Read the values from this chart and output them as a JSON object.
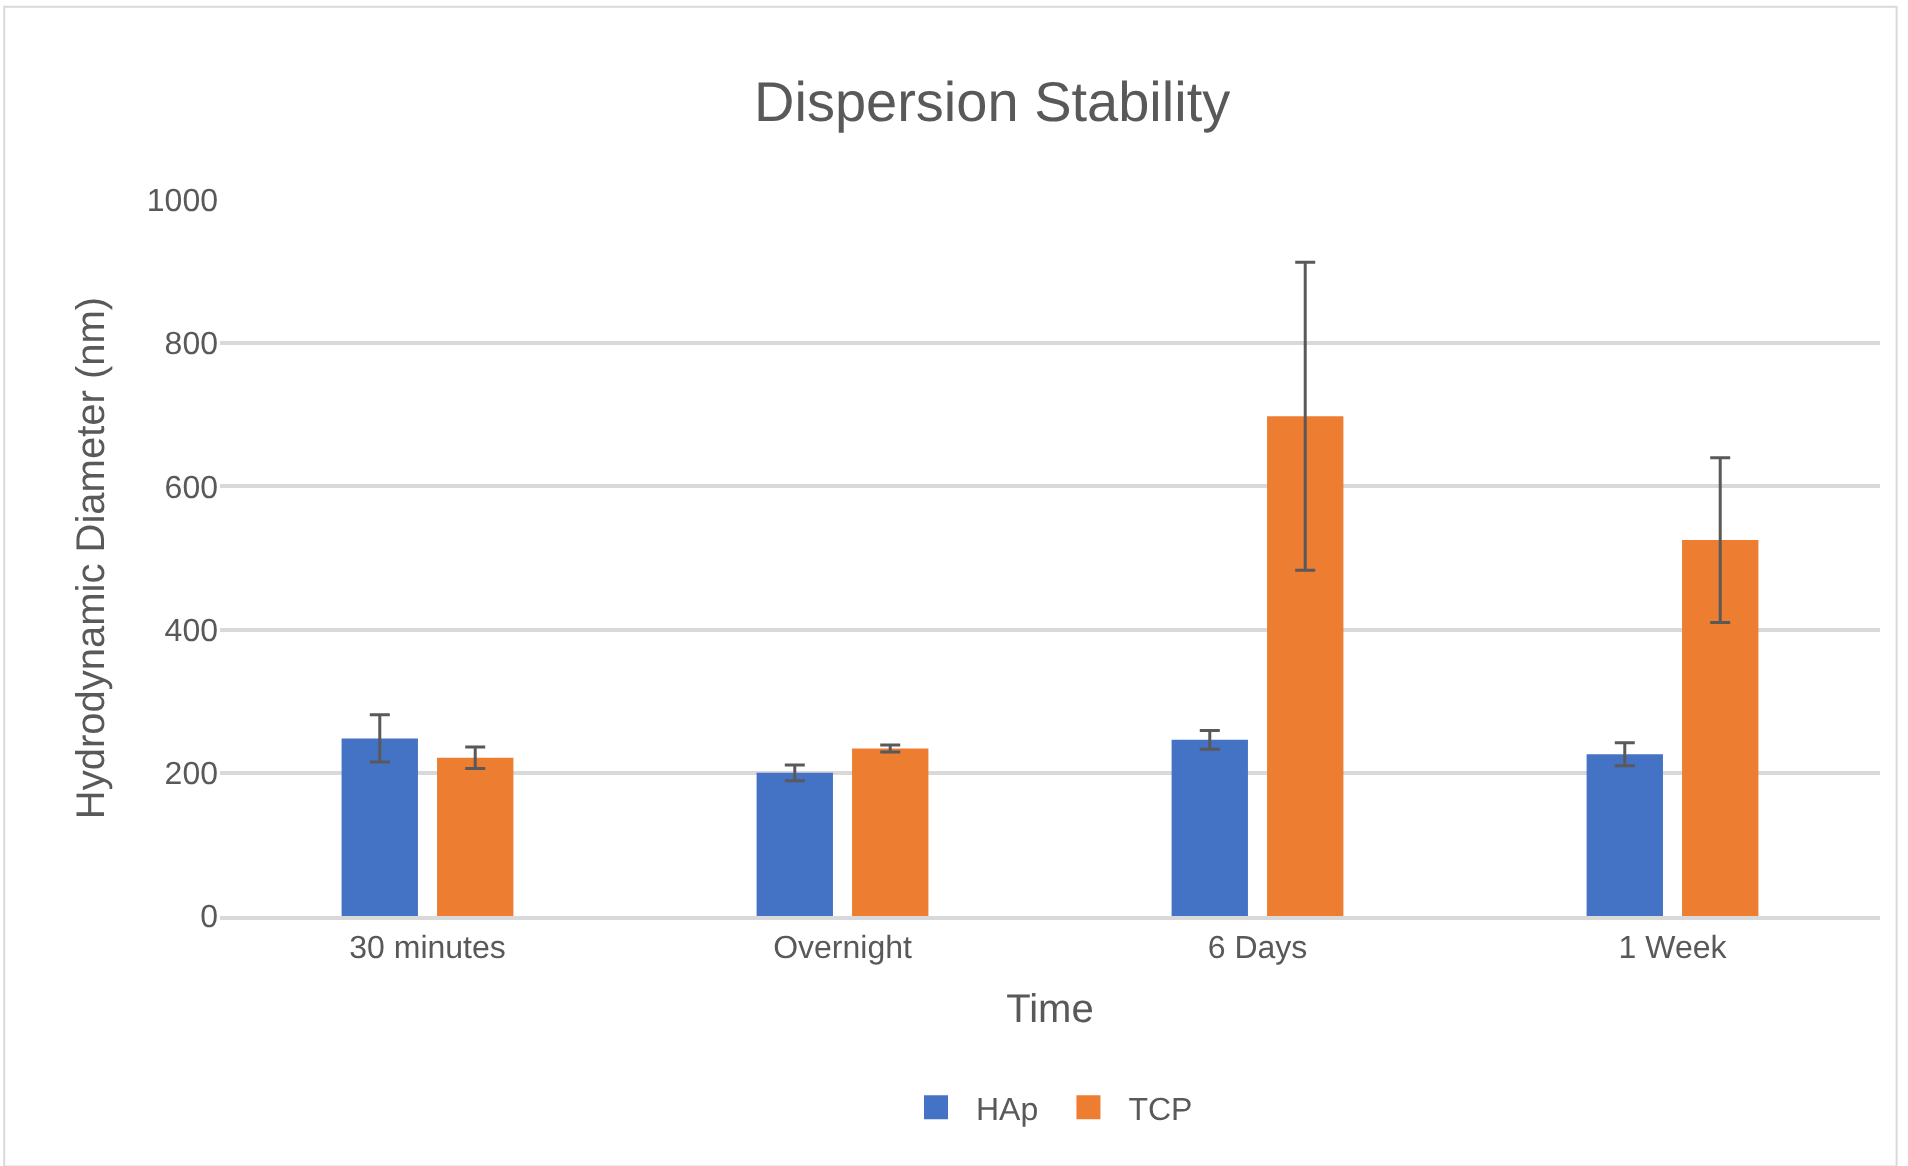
{
  "chart_data": {
    "type": "bar",
    "title": "Dispersion Stability",
    "xlabel": "Time",
    "ylabel": "Hydrodynamic Diameter (nm)",
    "categories": [
      "30 minutes",
      "Overnight",
      "6 Days",
      "1 Week"
    ],
    "series": [
      {
        "name": "HAp",
        "color": "#4472c4",
        "values": [
          248,
          200,
          246,
          226
        ],
        "errors": [
          33,
          11,
          13,
          16
        ]
      },
      {
        "name": "TCP",
        "color": "#ed7d31",
        "values": [
          221,
          234,
          698,
          525
        ],
        "errors": [
          15,
          5,
          215,
          115
        ]
      }
    ],
    "ylim": [
      0,
      1000
    ],
    "yticks": [
      0,
      200,
      400,
      600,
      800,
      1000
    ],
    "grid": "y",
    "legend": "bottom"
  }
}
